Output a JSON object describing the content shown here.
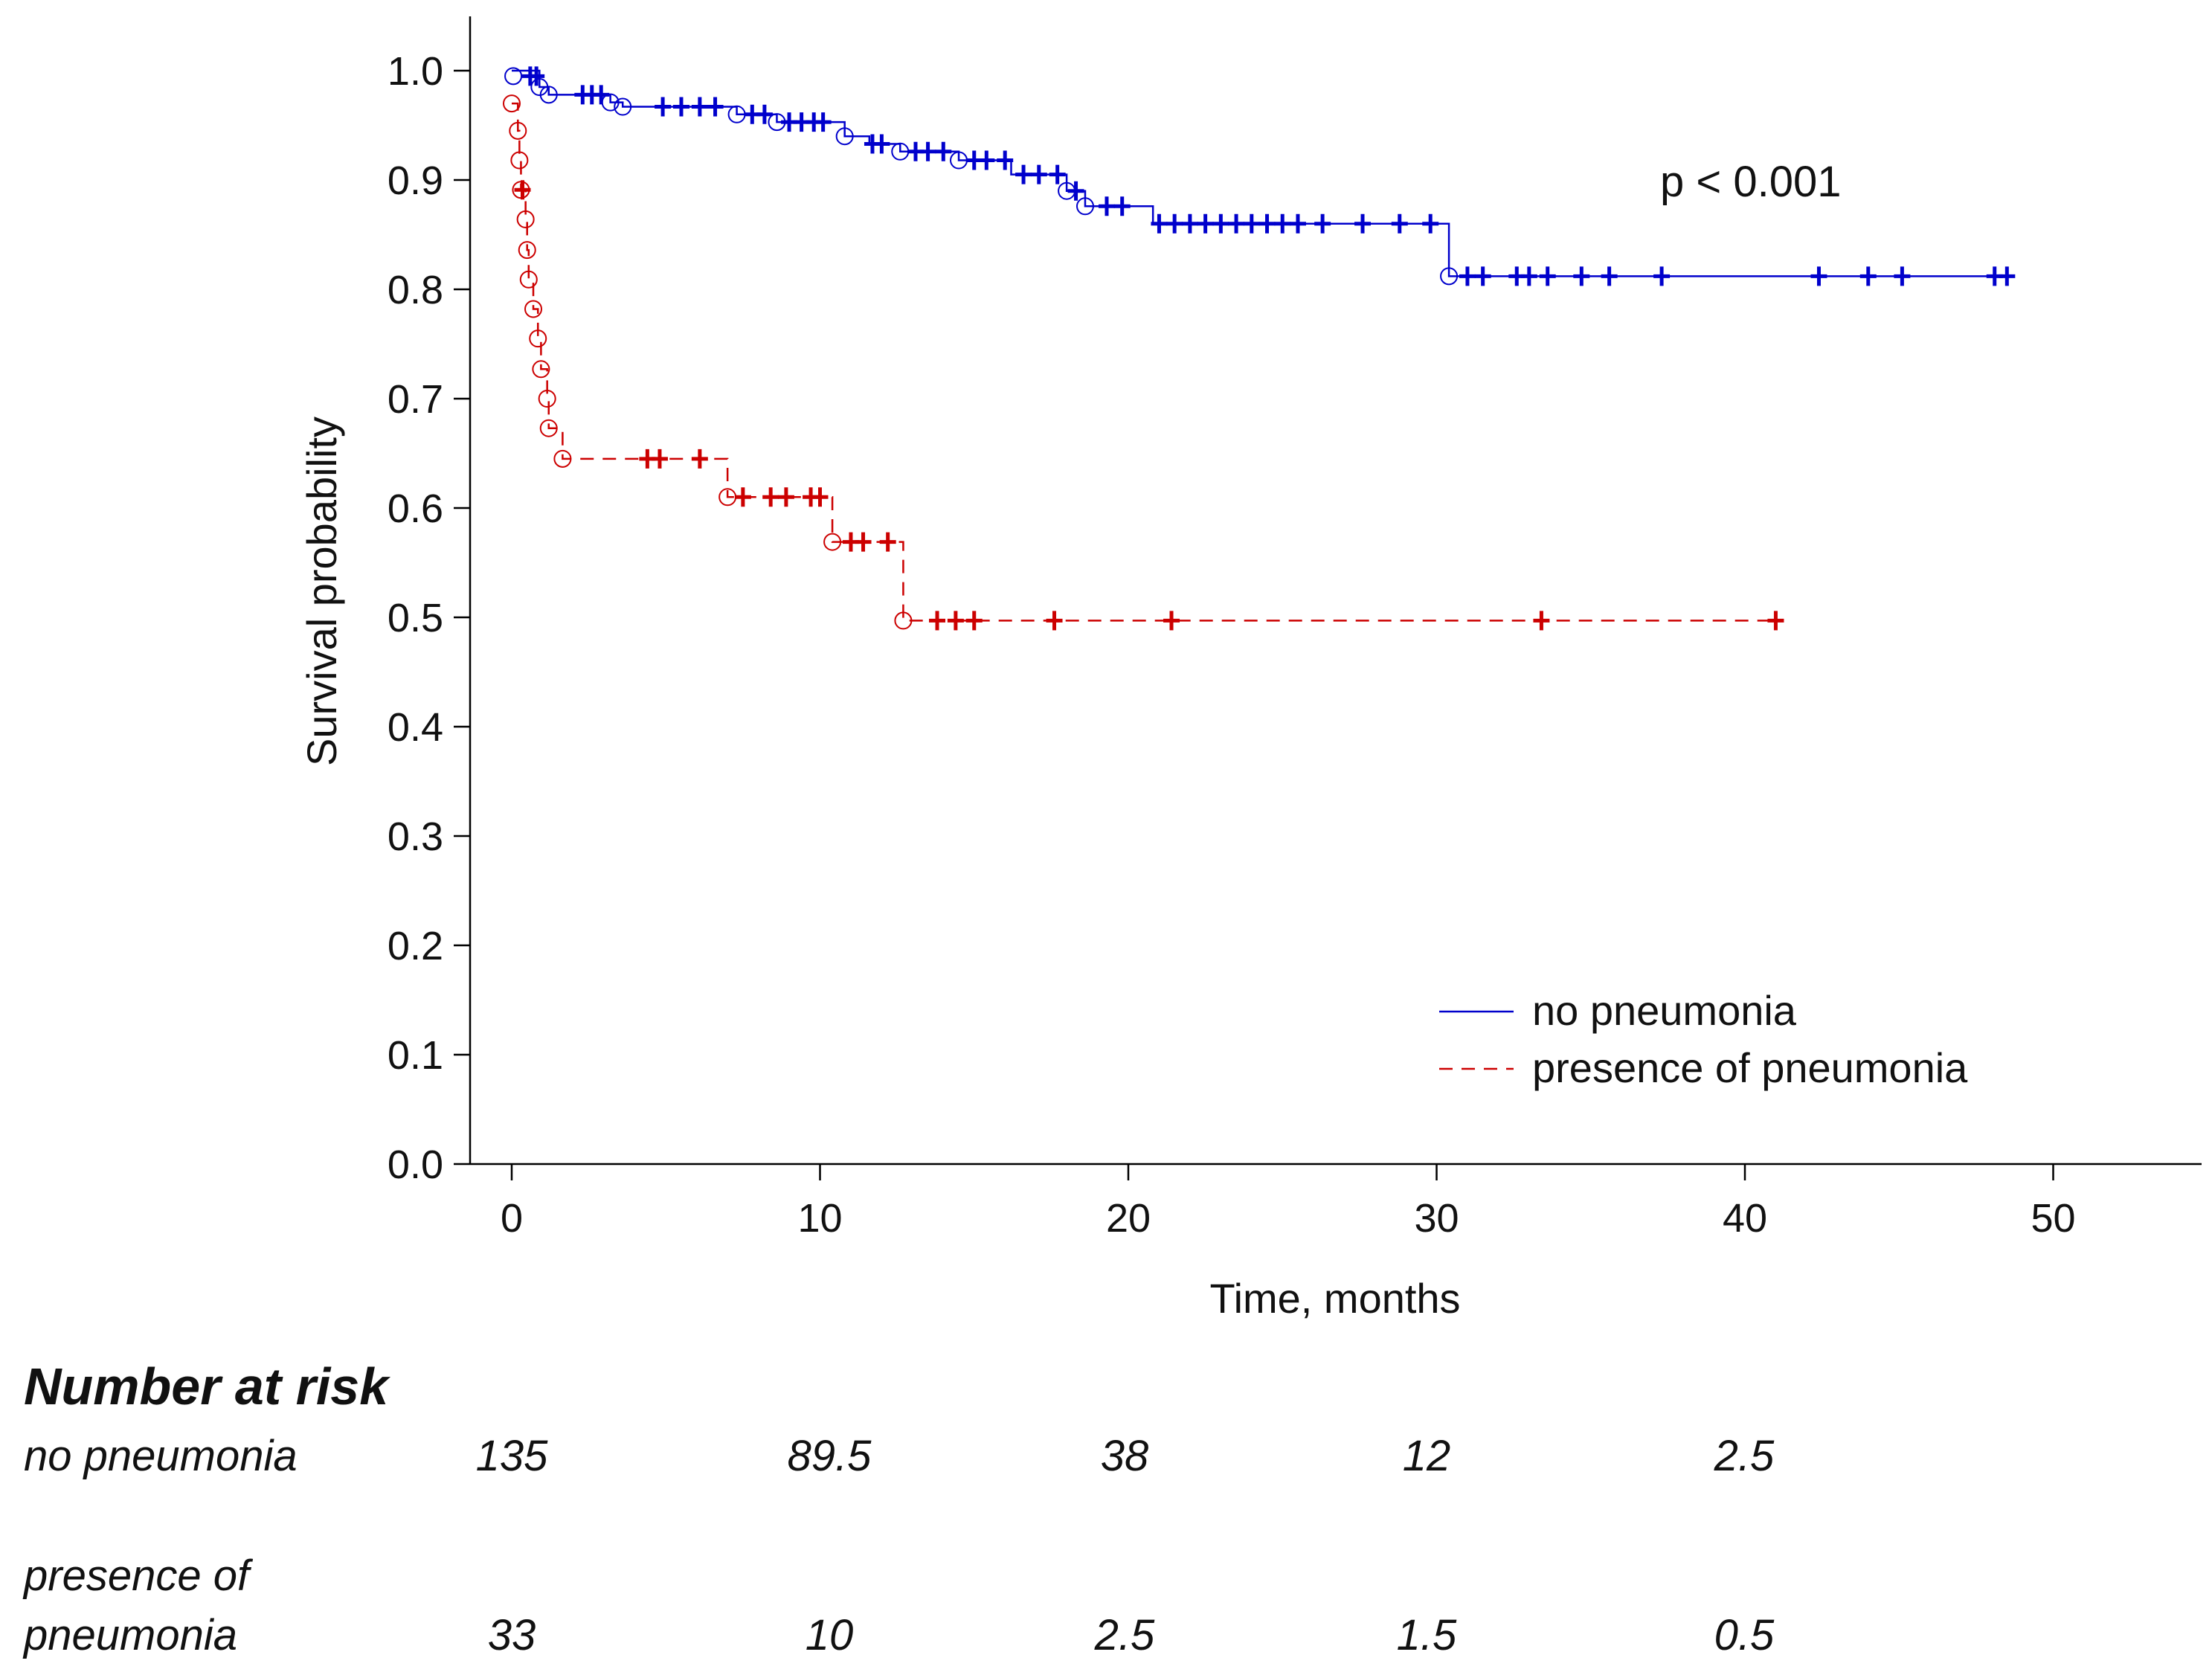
{
  "chart_data": {
    "type": "line",
    "subtype": "kaplan-meier",
    "title": "",
    "xlabel": "Time, months",
    "ylabel": "Survival probability",
    "xlim": [
      -1.5,
      54.5
    ],
    "ylim": [
      0,
      1.05
    ],
    "x_ticks": [
      0,
      10,
      20,
      30,
      40,
      50
    ],
    "x_tick_labels": [
      "0",
      "10",
      "20",
      "30",
      "40",
      "50"
    ],
    "y_ticks": [
      0,
      0.1,
      0.2,
      0.3,
      0.4,
      0.5,
      0.6,
      0.7,
      0.8,
      0.9,
      1.0
    ],
    "y_tick_labels": [
      "0.0",
      "0.1",
      "0.2",
      "0.3",
      "0.4",
      "0.5",
      "0.6",
      "0.7",
      "0.8",
      "0.9",
      "1.0"
    ],
    "grid": false,
    "legend_position": "bottom-right",
    "annotation": "p < 0.001",
    "series": [
      {
        "name": "no pneumonia",
        "color": "#0000cc",
        "line_style": "solid",
        "steps": [
          [
            0,
            1.0
          ],
          [
            0.9,
            0.985
          ],
          [
            1.2,
            0.978
          ],
          [
            3.2,
            0.971
          ],
          [
            3.6,
            0.967
          ],
          [
            7.3,
            0.96
          ],
          [
            8.6,
            0.953
          ],
          [
            10.8,
            0.94
          ],
          [
            11.6,
            0.933
          ],
          [
            12.6,
            0.926
          ],
          [
            14.5,
            0.918
          ],
          [
            16.2,
            0.905
          ],
          [
            18.0,
            0.89
          ],
          [
            18.6,
            0.876
          ],
          [
            20.8,
            0.86
          ],
          [
            30.4,
            0.812
          ],
          [
            48.5,
            0.812
          ]
        ],
        "events": [
          [
            0.05,
            0.995
          ],
          [
            0.9,
            0.985
          ],
          [
            1.2,
            0.978
          ],
          [
            3.2,
            0.971
          ],
          [
            3.6,
            0.967
          ],
          [
            7.3,
            0.96
          ],
          [
            8.6,
            0.953
          ],
          [
            10.8,
            0.94
          ],
          [
            12.6,
            0.926
          ],
          [
            14.5,
            0.918
          ],
          [
            18.0,
            0.89
          ],
          [
            18.6,
            0.876
          ],
          [
            30.4,
            0.812
          ]
        ],
        "censored": [
          [
            0.6,
            0.995
          ],
          [
            0.8,
            0.995
          ],
          [
            2.3,
            0.978
          ],
          [
            2.6,
            0.978
          ],
          [
            2.9,
            0.978
          ],
          [
            4.9,
            0.967
          ],
          [
            5.5,
            0.967
          ],
          [
            6.1,
            0.967
          ],
          [
            6.6,
            0.967
          ],
          [
            7.8,
            0.96
          ],
          [
            8.2,
            0.96
          ],
          [
            9.0,
            0.953
          ],
          [
            9.4,
            0.953
          ],
          [
            9.8,
            0.953
          ],
          [
            10.1,
            0.953
          ],
          [
            11.7,
            0.933
          ],
          [
            12.0,
            0.933
          ],
          [
            13.1,
            0.926
          ],
          [
            13.5,
            0.926
          ],
          [
            14.0,
            0.926
          ],
          [
            15.0,
            0.918
          ],
          [
            15.4,
            0.918
          ],
          [
            16.0,
            0.918
          ],
          [
            16.6,
            0.905
          ],
          [
            17.1,
            0.905
          ],
          [
            17.7,
            0.905
          ],
          [
            18.3,
            0.89
          ],
          [
            19.3,
            0.876
          ],
          [
            19.8,
            0.876
          ],
          [
            21.0,
            0.86
          ],
          [
            21.5,
            0.86
          ],
          [
            22.0,
            0.86
          ],
          [
            22.5,
            0.86
          ],
          [
            23.0,
            0.86
          ],
          [
            23.5,
            0.86
          ],
          [
            24.0,
            0.86
          ],
          [
            24.5,
            0.86
          ],
          [
            25.0,
            0.86
          ],
          [
            25.5,
            0.86
          ],
          [
            26.3,
            0.86
          ],
          [
            27.6,
            0.86
          ],
          [
            28.8,
            0.86
          ],
          [
            29.8,
            0.86
          ],
          [
            31.0,
            0.812
          ],
          [
            31.5,
            0.812
          ],
          [
            32.6,
            0.812
          ],
          [
            33.0,
            0.812
          ],
          [
            33.6,
            0.812
          ],
          [
            34.7,
            0.812
          ],
          [
            35.6,
            0.812
          ],
          [
            37.3,
            0.812
          ],
          [
            42.4,
            0.812
          ],
          [
            44.0,
            0.812
          ],
          [
            45.1,
            0.812
          ],
          [
            48.1,
            0.812
          ],
          [
            48.5,
            0.812
          ]
        ]
      },
      {
        "name": "presence of pneumonia",
        "color": "#cc0000",
        "line_style": "dashed",
        "steps": [
          [
            0,
            0.97
          ],
          [
            0.2,
            0.945
          ],
          [
            0.25,
            0.918
          ],
          [
            0.3,
            0.891
          ],
          [
            0.45,
            0.864
          ],
          [
            0.5,
            0.836
          ],
          [
            0.55,
            0.809
          ],
          [
            0.7,
            0.782
          ],
          [
            0.85,
            0.755
          ],
          [
            0.95,
            0.727
          ],
          [
            1.15,
            0.7
          ],
          [
            1.2,
            0.673
          ],
          [
            1.65,
            0.645
          ],
          [
            7.0,
            0.61
          ],
          [
            10.4,
            0.569
          ],
          [
            12.7,
            0.497
          ],
          [
            41.0,
            0.497
          ]
        ],
        "events": [
          [
            0.0,
            0.97
          ],
          [
            0.2,
            0.945
          ],
          [
            0.25,
            0.918
          ],
          [
            0.3,
            0.891
          ],
          [
            0.45,
            0.864
          ],
          [
            0.5,
            0.836
          ],
          [
            0.55,
            0.809
          ],
          [
            0.7,
            0.782
          ],
          [
            0.85,
            0.755
          ],
          [
            0.95,
            0.727
          ],
          [
            1.15,
            0.7
          ],
          [
            1.2,
            0.673
          ],
          [
            1.65,
            0.645
          ],
          [
            7.0,
            0.61
          ],
          [
            10.4,
            0.569
          ],
          [
            12.7,
            0.497
          ]
        ],
        "censored": [
          [
            0.35,
            0.891
          ],
          [
            4.4,
            0.645
          ],
          [
            4.8,
            0.645
          ],
          [
            6.1,
            0.645
          ],
          [
            7.5,
            0.61
          ],
          [
            8.4,
            0.61
          ],
          [
            8.9,
            0.61
          ],
          [
            9.7,
            0.61
          ],
          [
            10.0,
            0.61
          ],
          [
            11.0,
            0.569
          ],
          [
            11.4,
            0.569
          ],
          [
            12.2,
            0.569
          ],
          [
            13.8,
            0.497
          ],
          [
            14.4,
            0.497
          ],
          [
            15.0,
            0.497
          ],
          [
            17.6,
            0.497
          ],
          [
            21.4,
            0.497
          ],
          [
            33.4,
            0.497
          ],
          [
            41.0,
            0.497
          ]
        ]
      }
    ],
    "number_at_risk": {
      "title": "Number at risk",
      "rows": [
        {
          "label_lines": [
            "no pneumonia"
          ],
          "values": [
            "135",
            "89.5",
            "38",
            "12",
            "2.5"
          ]
        },
        {
          "label_lines": [
            "presence of",
            "pneumonia"
          ],
          "values": [
            "33",
            "10",
            "2.5",
            "1.5",
            "0.5"
          ]
        }
      ]
    }
  }
}
